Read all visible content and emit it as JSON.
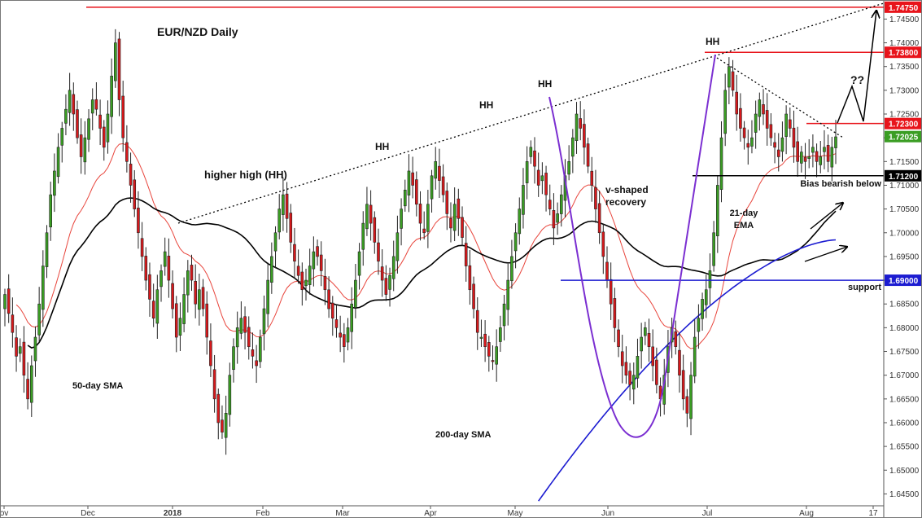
{
  "chart_data": {
    "type": "candlestick",
    "title": "EUR/NZD Daily",
    "ylim": [
      1.6425,
      1.7485
    ],
    "y_ticks": [
      "1.64500",
      "1.65000",
      "1.65500",
      "1.66000",
      "1.66500",
      "1.67000",
      "1.67500",
      "1.68000",
      "1.68500",
      "1.69000",
      "1.69500",
      "1.70000",
      "1.70500",
      "1.71000",
      "1.71500",
      "1.72000",
      "1.72500",
      "1.73000",
      "1.73500",
      "1.74000",
      "1.74500"
    ],
    "x_labels": [
      "ov",
      "Dec",
      "2018",
      "Feb",
      "Mar",
      "Apr",
      "May",
      "Jun",
      "Jul",
      "Aug",
      "17"
    ],
    "candles_close": [
      1.687,
      1.683,
      1.679,
      1.674,
      1.676,
      1.67,
      1.665,
      1.672,
      1.678,
      1.685,
      1.693,
      1.7,
      1.708,
      1.713,
      1.718,
      1.722,
      1.726,
      1.73,
      1.725,
      1.72,
      1.716,
      1.72,
      1.724,
      1.728,
      1.726,
      1.722,
      1.718,
      1.725,
      1.733,
      1.74,
      1.728,
      1.72,
      1.715,
      1.71,
      1.705,
      1.7,
      1.695,
      1.69,
      1.686,
      1.682,
      1.688,
      1.692,
      1.696,
      1.69,
      1.684,
      1.678,
      1.682,
      1.687,
      1.692,
      1.69,
      1.685,
      1.688,
      1.684,
      1.678,
      1.672,
      1.665,
      1.66,
      1.658,
      1.662,
      1.67,
      1.676,
      1.68,
      1.682,
      1.679,
      1.676,
      1.674,
      1.672,
      1.678,
      1.684,
      1.69,
      1.695,
      1.7,
      1.705,
      1.708,
      1.703,
      1.698,
      1.694,
      1.691,
      1.688,
      1.69,
      1.693,
      1.696,
      1.695,
      1.692,
      1.688,
      1.684,
      1.682,
      1.68,
      1.678,
      1.676,
      1.68,
      1.685,
      1.69,
      1.696,
      1.702,
      1.706,
      1.702,
      1.698,
      1.694,
      1.69,
      1.687,
      1.691,
      1.695,
      1.7,
      1.705,
      1.709,
      1.713,
      1.71,
      1.706,
      1.702,
      1.7,
      1.706,
      1.712,
      1.715,
      1.711,
      1.708,
      1.704,
      1.701,
      1.706,
      1.703,
      1.699,
      1.693,
      1.688,
      1.684,
      1.679,
      1.678,
      1.676,
      1.674,
      1.673,
      1.676,
      1.68,
      1.685,
      1.69,
      1.695,
      1.7,
      1.705,
      1.71,
      1.715,
      1.718,
      1.714,
      1.71,
      1.712,
      1.708,
      1.705,
      1.701,
      1.704,
      1.708,
      1.712,
      1.715,
      1.72,
      1.725,
      1.722,
      1.718,
      1.714,
      1.71,
      1.705,
      1.7,
      1.695,
      1.69,
      1.685,
      1.68,
      1.676,
      1.672,
      1.67,
      1.668,
      1.67,
      1.674,
      1.678,
      1.68,
      1.676,
      1.672,
      1.668,
      1.665,
      1.67,
      1.676,
      1.68,
      1.676,
      1.67,
      1.665,
      1.662,
      1.67,
      1.678,
      1.682,
      1.686,
      1.688,
      1.692,
      1.7,
      1.71,
      1.72,
      1.73,
      1.735,
      1.73,
      1.725,
      1.722,
      1.72,
      1.718,
      1.72,
      1.725,
      1.728,
      1.725,
      1.722,
      1.72,
      1.718,
      1.716,
      1.72,
      1.725,
      1.722,
      1.718,
      1.715,
      1.717,
      1.715,
      1.716,
      1.718,
      1.715,
      1.716,
      1.718,
      1.715,
      1.718,
      1.7202
    ],
    "price_labels": [
      {
        "value": 1.7475,
        "label": "1.74750",
        "color": "#e8141b"
      },
      {
        "value": 1.738,
        "label": "1.73800",
        "color": "#e8141b"
      },
      {
        "value": 1.723,
        "label": "1.72300",
        "color": "#e8141b"
      },
      {
        "value": 1.72025,
        "label": "1.72025",
        "color": "#3a9d23"
      },
      {
        "value": 1.712,
        "label": "1.71200",
        "color": "#000000"
      },
      {
        "value": 1.69,
        "label": "1.69000",
        "color": "#1c1cd1"
      }
    ],
    "annotations": {
      "higher_high": "higher high (HH)",
      "hh": "HH",
      "v_shaped_1": "v-shaped",
      "v_shaped_2": "recovery",
      "ema_1": "21-day",
      "ema_2": "EMA",
      "sma50": "50-day SMA",
      "sma200": "200-day SMA",
      "support": "support",
      "bias": "Bias bearish below",
      "qq": "??"
    },
    "colors": {
      "bull": "#3a9d23",
      "bear": "#d7191c",
      "ema": "#e8453c",
      "sma50": "#000000",
      "sma200": "#1c1cd1",
      "resistance": "#e8141b",
      "support": "#1c1cd1",
      "curve": "#7b2fd1"
    },
    "grid": false
  }
}
